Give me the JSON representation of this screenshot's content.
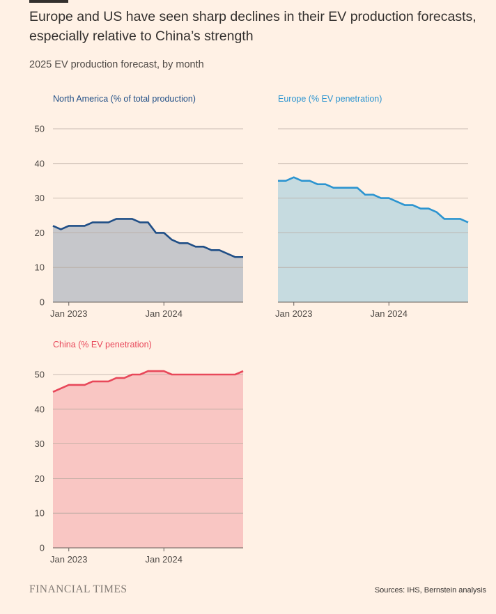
{
  "headline": "Europe and US have seen sharp declines in their EV production forecasts, especially relative to China’s strength",
  "subtitle": "2025 EV production forecast, by month",
  "brand": "FINANCIAL TIMES",
  "source": "Sources: IHS, Bernstein analysis",
  "colors": {
    "background": "#fff1e5",
    "na_line": "#1f4e86",
    "na_fill": "#c6c7cb",
    "eu_line": "#2b94d0",
    "eu_fill": "#c6dbe0",
    "cn_line": "#e8485a",
    "cn_fill": "#f9c6c3"
  },
  "chart_data": [
    {
      "type": "area",
      "title": "North America (% of total production)",
      "x_tick_labels": [
        "Jan 2023",
        "Jan 2024"
      ],
      "x": [
        "Nov 2022",
        "Dec 2022",
        "Jan 2023",
        "Feb 2023",
        "Mar 2023",
        "Apr 2023",
        "May 2023",
        "Jun 2023",
        "Jul 2023",
        "Aug 2023",
        "Sep 2023",
        "Oct 2023",
        "Nov 2023",
        "Dec 2023",
        "Jan 2024",
        "Feb 2024",
        "Mar 2024",
        "Apr 2024",
        "May 2024",
        "Jun 2024",
        "Jul 2024",
        "Aug 2024",
        "Sep 2024",
        "Oct 2024",
        "Nov 2024"
      ],
      "values": [
        22,
        21,
        22,
        22,
        22,
        23,
        23,
        23,
        24,
        24,
        24,
        23,
        23,
        20,
        20,
        18,
        17,
        17,
        16,
        16,
        15,
        15,
        14,
        13,
        13
      ],
      "ylim": [
        0,
        50
      ],
      "yticks": [
        0,
        10,
        20,
        30,
        40,
        50
      ],
      "grid": true
    },
    {
      "type": "area",
      "title": "Europe (% EV penetration)",
      "x_tick_labels": [
        "Jan 2023",
        "Jan 2024"
      ],
      "x": [
        "Nov 2022",
        "Dec 2022",
        "Jan 2023",
        "Feb 2023",
        "Mar 2023",
        "Apr 2023",
        "May 2023",
        "Jun 2023",
        "Jul 2023",
        "Aug 2023",
        "Sep 2023",
        "Oct 2023",
        "Nov 2023",
        "Dec 2023",
        "Jan 2024",
        "Feb 2024",
        "Mar 2024",
        "Apr 2024",
        "May 2024",
        "Jun 2024",
        "Jul 2024",
        "Aug 2024",
        "Sep 2024",
        "Oct 2024",
        "Nov 2024"
      ],
      "values": [
        35,
        35,
        36,
        35,
        35,
        34,
        34,
        33,
        33,
        33,
        33,
        31,
        31,
        30,
        30,
        29,
        28,
        28,
        27,
        27,
        26,
        24,
        24,
        24,
        23
      ],
      "ylim": [
        0,
        50
      ],
      "yticks": [
        0,
        10,
        20,
        30,
        40,
        50
      ],
      "grid": true
    },
    {
      "type": "area",
      "title": "China (% EV penetration)",
      "x_tick_labels": [
        "Jan 2023",
        "Jan 2024"
      ],
      "x": [
        "Nov 2022",
        "Dec 2022",
        "Jan 2023",
        "Feb 2023",
        "Mar 2023",
        "Apr 2023",
        "May 2023",
        "Jun 2023",
        "Jul 2023",
        "Aug 2023",
        "Sep 2023",
        "Oct 2023",
        "Nov 2023",
        "Dec 2023",
        "Jan 2024",
        "Feb 2024",
        "Mar 2024",
        "Apr 2024",
        "May 2024",
        "Jun 2024",
        "Jul 2024",
        "Aug 2024",
        "Sep 2024",
        "Oct 2024",
        "Nov 2024"
      ],
      "values": [
        45,
        46,
        47,
        47,
        47,
        48,
        48,
        48,
        49,
        49,
        50,
        50,
        51,
        51,
        51,
        50,
        50,
        50,
        50,
        50,
        50,
        50,
        50,
        50,
        51
      ],
      "ylim": [
        0,
        50
      ],
      "yticks": [
        0,
        10,
        20,
        30,
        40,
        50
      ],
      "grid": true
    }
  ]
}
